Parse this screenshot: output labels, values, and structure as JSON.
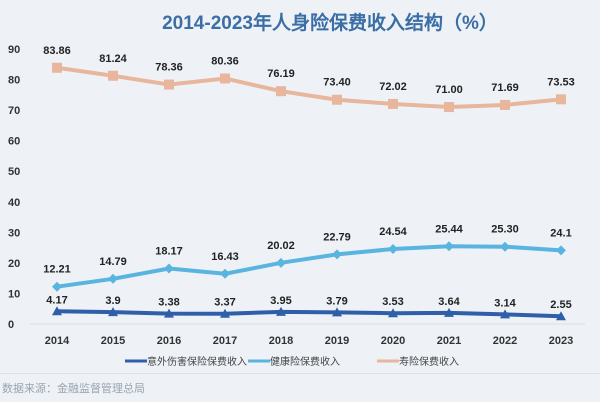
{
  "chart_data": {
    "type": "line",
    "title": "2014-2023年人身险保费收入结构（%）",
    "categories": [
      "2014",
      "2015",
      "2016",
      "2017",
      "2018",
      "2019",
      "2020",
      "2021",
      "2022",
      "2023"
    ],
    "ylim": [
      0,
      90
    ],
    "yticks": [
      "0",
      "10",
      "20",
      "30",
      "40",
      "50",
      "60",
      "70",
      "80",
      "90"
    ],
    "grid": false,
    "legend_position": "bottom",
    "series": [
      {
        "name": "意外伤害保险保费收入",
        "color": "#2f5fa8",
        "marker": "triangle",
        "values": [
          4.17,
          3.9,
          3.38,
          3.37,
          3.95,
          3.79,
          3.53,
          3.64,
          3.14,
          2.55
        ],
        "labels": [
          "4.17",
          "3.9",
          "3.38",
          "3.37",
          "3.95",
          "3.79",
          "3.53",
          "3.64",
          "3.14",
          "2.55"
        ]
      },
      {
        "name": "健康险保费收入",
        "color": "#5ab4e0",
        "marker": "diamond",
        "values": [
          12.21,
          14.79,
          18.17,
          16.43,
          20.02,
          22.79,
          24.54,
          25.44,
          25.3,
          24.1
        ],
        "labels": [
          "12.21",
          "14.79",
          "18.17",
          "16.43",
          "20.02",
          "22.79",
          "24.54",
          "25.44",
          "25.30",
          "24.1"
        ]
      },
      {
        "name": "寿险保费收入",
        "color": "#e8b69c",
        "marker": "square",
        "values": [
          83.86,
          81.24,
          78.36,
          80.36,
          76.19,
          73.4,
          72.02,
          71.0,
          71.69,
          73.53
        ],
        "labels": [
          "83.86",
          "81.24",
          "78.36",
          "80.36",
          "76.19",
          "73.40",
          "72.02",
          "71.00",
          "71.69",
          "73.53"
        ]
      }
    ]
  },
  "source": "数据来源：金融监督管理总局"
}
